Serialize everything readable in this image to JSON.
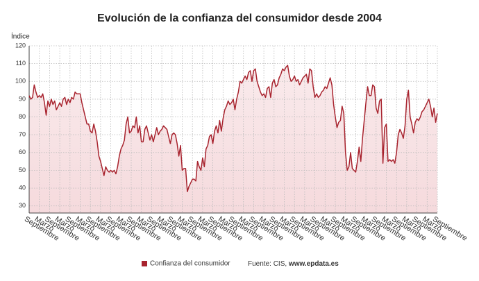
{
  "chart_data": {
    "type": "line",
    "title": "Evolución de la confianza del consumidor desde 2004",
    "y_label": "Índice",
    "source_prefix": "Fuente: CIS,",
    "source_link": "www.epdata.es",
    "ylim": [
      26,
      120
    ],
    "yticks": [
      30,
      40,
      50,
      60,
      70,
      80,
      90,
      100,
      110,
      120
    ],
    "grid": true,
    "categories": [
      "Septiembre",
      null,
      null,
      null,
      null,
      null,
      "Marzo",
      null,
      null,
      null,
      null,
      null,
      "Septiembre",
      null,
      null,
      null,
      null,
      null,
      "Marzo",
      null,
      null,
      null,
      null,
      null,
      "Septiembre",
      null,
      null,
      null,
      null,
      null,
      "Marzo",
      null,
      null,
      null,
      null,
      null,
      "Septiembre",
      null,
      null,
      null,
      null,
      null,
      "Marzo",
      null,
      null,
      null,
      null,
      null,
      "Septiembre",
      null,
      null,
      null,
      null,
      null,
      "Marzo",
      null,
      null,
      null,
      null,
      null,
      "Septiembre",
      null,
      null,
      null,
      null,
      null,
      "Marzo",
      null,
      null,
      null,
      null,
      null,
      "Septiembre",
      null,
      null,
      null,
      null,
      null,
      "Marzo",
      null,
      null,
      null,
      null,
      null,
      "Septiembre",
      null,
      null,
      null,
      null,
      null,
      "Marzo",
      null,
      null,
      null,
      null,
      null,
      "Septiembre",
      null,
      null,
      null,
      null,
      null,
      "Marzo",
      null,
      null,
      null,
      null,
      null,
      "Septiembre",
      null,
      null,
      null,
      null,
      null,
      "Marzo",
      null,
      null,
      null,
      null,
      null,
      "Septiembre",
      null,
      null,
      null,
      null,
      null,
      "Marzo",
      null,
      null,
      null,
      null,
      null,
      "Septiembre",
      null,
      null,
      null,
      null,
      null,
      "Marzo",
      null,
      null,
      null,
      null,
      null,
      "Septiembre",
      null,
      null,
      null,
      null,
      null,
      "Marzo",
      null,
      null,
      null,
      null,
      null,
      "Septiembre",
      null,
      null,
      null,
      null,
      null,
      "Marzo",
      null,
      null,
      null,
      null,
      null,
      "Septiembre",
      null,
      null,
      null,
      null,
      null,
      "Marzo",
      null,
      null,
      null,
      null,
      null,
      "Septiembre",
      null,
      null,
      null,
      null,
      null,
      "Marzo",
      null,
      null,
      null,
      null,
      null,
      "Septiembre",
      null,
      null,
      null,
      null,
      null,
      "Marzo",
      null,
      null,
      null,
      null,
      null,
      "Septiembre",
      null,
      null,
      null,
      null,
      null,
      "Marzo",
      null,
      null,
      null,
      null,
      null,
      "Septiembre",
      null,
      null,
      null,
      null,
      null,
      "Marzo",
      null,
      null,
      null,
      null,
      null,
      "Septiembre",
      null,
      null,
      null,
      null,
      null,
      "Marzo",
      null,
      null,
      null,
      null,
      null,
      "Septiembre"
    ],
    "series": [
      {
        "name": "Confianza del consumidor",
        "color": "#a8232e",
        "values": [
          92,
          90,
          91,
          98,
          94,
          91,
          92,
          91,
          93,
          88,
          81,
          89,
          86,
          90,
          87,
          89,
          84,
          86,
          88,
          86,
          90,
          91,
          87,
          90,
          88,
          91,
          90,
          94,
          93,
          93,
          93,
          88,
          84,
          80,
          76,
          76,
          72,
          71,
          76,
          72,
          66,
          58,
          55,
          51,
          47,
          52,
          50,
          49,
          50,
          49,
          50,
          48,
          52,
          58,
          62,
          64,
          67,
          76,
          80,
          71,
          72,
          75,
          74,
          80,
          71,
          75,
          66,
          66,
          73,
          75,
          71,
          67,
          70,
          66,
          70,
          74,
          70,
          72,
          73,
          75,
          74,
          73,
          69,
          65,
          70,
          71,
          70,
          65,
          58,
          64,
          50,
          51,
          51,
          38,
          41,
          43,
          45,
          45,
          44,
          55,
          52,
          50,
          57,
          52,
          62,
          64,
          69,
          70,
          65,
          72,
          75,
          71,
          78,
          72,
          79,
          84,
          86,
          89,
          87,
          88,
          90,
          84,
          90,
          94,
          100,
          99,
          101,
          103,
          101,
          105,
          106,
          100,
          106,
          107,
          100,
          97,
          94,
          92,
          93,
          91,
          96,
          97,
          91,
          99,
          101,
          97,
          98,
          102,
          104,
          107,
          106,
          108,
          109,
          103,
          100,
          101,
          103,
          100,
          101,
          98,
          100,
          102,
          103,
          104,
          99,
          107,
          106,
          97,
          91,
          93,
          91,
          92,
          94,
          95,
          97,
          96,
          99,
          102,
          98,
          87,
          80,
          74,
          77,
          78,
          86,
          82,
          60,
          50,
          52,
          60,
          51,
          50,
          49,
          55,
          63,
          55,
          68,
          78,
          88,
          97,
          92,
          92,
          98,
          97,
          85,
          82,
          89,
          90,
          54,
          74,
          76,
          55,
          56,
          55,
          56,
          54,
          60,
          70,
          73,
          71,
          68,
          75,
          90,
          95,
          80,
          76,
          71,
          77,
          79,
          78,
          80,
          83,
          84,
          86,
          88,
          90,
          86,
          80,
          85,
          77,
          82
        ]
      }
    ]
  }
}
